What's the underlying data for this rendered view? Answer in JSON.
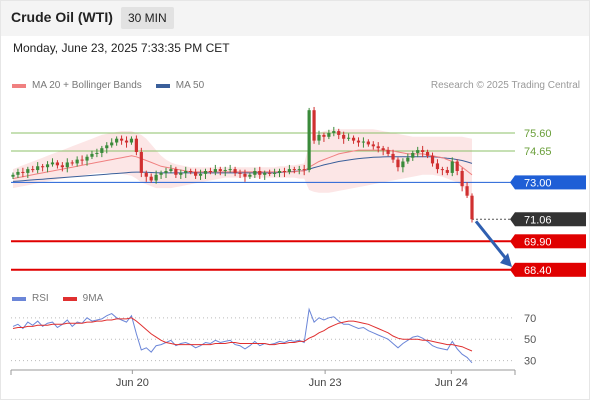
{
  "header": {
    "title": "Crude Oil (WTI)",
    "interval": "30 MIN",
    "timestamp": "Monday, June 23, 2025 7:33:35 PM CET"
  },
  "legend": {
    "ma20_label": "MA 20 + Bollinger Bands",
    "ma50_label": "MA 50",
    "research": "Research © 2025 Trading Central",
    "rsi_label": "RSI",
    "ma9_label": "9MA"
  },
  "colors": {
    "ma20": "#f08080",
    "ma50": "#3a5f9a",
    "bollinger_fill": "#fce2e2",
    "bull": "#3a8a3a",
    "bear": "#d03030",
    "resistance": "#8cc06a",
    "pivot": "#1f5fd6",
    "support": "#e00000",
    "last_price": "#333333",
    "rsi": "#6b86d8",
    "rsi_ma": "#e03030",
    "arrow": "#2f5fb0"
  },
  "chart_data": [
    {
      "type": "candlestick",
      "price_range": [
        67.6,
        77.6
      ],
      "levels": [
        {
          "label": "75.60",
          "value": 75.6,
          "kind": "resistance"
        },
        {
          "label": "74.65",
          "value": 74.65,
          "kind": "resistance"
        },
        {
          "label": "73.00",
          "value": 73.0,
          "kind": "pivot"
        },
        {
          "label": "71.06",
          "value": 71.06,
          "kind": "last"
        },
        {
          "label": "69.90",
          "value": 69.9,
          "kind": "support"
        },
        {
          "label": "68.40",
          "value": 68.4,
          "kind": "support"
        }
      ],
      "x_ticks": [
        "Jun 20",
        "Jun 23",
        "Jun 24"
      ],
      "close": [
        73.4,
        73.55,
        73.5,
        73.7,
        73.65,
        73.85,
        73.8,
        73.95,
        74.05,
        73.9,
        73.8,
        74.05,
        74.0,
        74.2,
        74.15,
        74.35,
        74.5,
        74.55,
        74.8,
        74.95,
        75.1,
        75.3,
        75.2,
        75.1,
        75.3,
        74.6,
        73.5,
        73.3,
        73.1,
        73.4,
        73.5,
        73.6,
        73.7,
        73.4,
        73.5,
        73.6,
        73.55,
        73.35,
        73.45,
        73.6,
        73.55,
        73.7,
        73.6,
        73.65,
        73.7,
        73.5,
        73.45,
        73.3,
        73.4,
        73.6,
        73.4,
        73.5,
        73.45,
        73.5,
        73.6,
        73.55,
        73.7,
        73.65,
        73.7,
        73.65,
        76.8,
        75.2,
        75.5,
        75.4,
        75.6,
        75.7,
        75.5,
        75.3,
        75.35,
        75.2,
        75.1,
        75.15,
        75.0,
        74.9,
        74.8,
        74.7,
        74.5,
        74.2,
        73.8,
        74.1,
        74.3,
        74.55,
        74.7,
        74.6,
        74.4,
        74.0,
        73.7,
        73.65,
        73.5,
        74.1,
        73.6,
        72.8,
        72.3,
        71.06
      ],
      "ma20": [
        73.2,
        73.25,
        73.3,
        73.35,
        73.4,
        73.45,
        73.5,
        73.55,
        73.6,
        73.65,
        73.7,
        73.75,
        73.8,
        73.85,
        73.9,
        73.95,
        74.0,
        74.05,
        74.1,
        74.15,
        74.2,
        74.25,
        74.3,
        74.35,
        74.4,
        74.35,
        74.25,
        74.15,
        74.05,
        73.95,
        73.85,
        73.8,
        73.75,
        73.7,
        73.65,
        73.6,
        73.55,
        73.55,
        73.55,
        73.55,
        73.55,
        73.55,
        73.55,
        73.55,
        73.55,
        73.55,
        73.55,
        73.55,
        73.55,
        73.55,
        73.55,
        73.55,
        73.55,
        73.55,
        73.55,
        73.55,
        73.55,
        73.55,
        73.6,
        73.6,
        73.8,
        73.95,
        74.1,
        74.2,
        74.3,
        74.4,
        74.5,
        74.55,
        74.6,
        74.65,
        74.7,
        74.7,
        74.7,
        74.7,
        74.7,
        74.7,
        74.7,
        74.65,
        74.6,
        74.55,
        74.5,
        74.5,
        74.5,
        74.5,
        74.45,
        74.4,
        74.35,
        74.3,
        74.2,
        74.1,
        74.0,
        73.8,
        73.6,
        73.4
      ],
      "bb_upper": [
        73.7,
        73.8,
        73.9,
        74.0,
        74.1,
        74.2,
        74.3,
        74.4,
        74.5,
        74.6,
        74.7,
        74.8,
        74.9,
        75.0,
        75.1,
        75.2,
        75.3,
        75.4,
        75.5,
        75.55,
        75.6,
        75.65,
        75.7,
        75.7,
        75.7,
        75.6,
        75.5,
        75.3,
        75.0,
        74.7,
        74.4,
        74.2,
        74.05,
        73.95,
        73.9,
        73.85,
        73.8,
        73.8,
        73.8,
        73.8,
        73.8,
        73.8,
        73.8,
        73.8,
        73.8,
        73.8,
        73.8,
        73.8,
        73.8,
        73.8,
        73.8,
        73.8,
        73.8,
        73.8,
        73.85,
        73.85,
        73.9,
        73.9,
        73.95,
        74.0,
        75.0,
        75.4,
        75.6,
        75.7,
        75.75,
        75.8,
        75.8,
        75.8,
        75.8,
        75.8,
        75.8,
        75.8,
        75.8,
        75.8,
        75.75,
        75.7,
        75.65,
        75.6,
        75.55,
        75.5,
        75.45,
        75.4,
        75.4,
        75.4,
        75.4,
        75.4,
        75.4,
        75.4,
        75.4,
        75.4,
        75.4,
        75.4,
        75.35,
        75.3
      ],
      "bb_lower": [
        72.7,
        72.75,
        72.8,
        72.85,
        72.9,
        72.95,
        73.0,
        73.05,
        73.1,
        73.15,
        73.2,
        73.25,
        73.3,
        73.3,
        73.35,
        73.4,
        73.45,
        73.5,
        73.5,
        73.5,
        73.5,
        73.5,
        73.45,
        73.4,
        73.35,
        73.2,
        73.0,
        72.9,
        72.8,
        72.7,
        72.7,
        72.7,
        72.7,
        72.75,
        72.8,
        72.85,
        72.9,
        72.95,
        73.0,
        73.05,
        73.1,
        73.15,
        73.2,
        73.25,
        73.25,
        73.25,
        73.25,
        73.25,
        73.25,
        73.25,
        73.25,
        73.25,
        73.25,
        73.25,
        73.25,
        73.25,
        73.25,
        73.25,
        73.2,
        73.2,
        72.6,
        72.5,
        72.45,
        72.45,
        72.45,
        72.5,
        72.55,
        72.6,
        72.65,
        72.7,
        72.75,
        72.8,
        72.85,
        72.9,
        72.95,
        73.0,
        73.05,
        73.1,
        73.15,
        73.2,
        73.25,
        73.3,
        73.35,
        73.4,
        73.4,
        73.4,
        73.35,
        73.3,
        73.2,
        73.1,
        73.0,
        72.8,
        72.5,
        72.1
      ],
      "ma50": [
        73.05,
        73.07,
        73.09,
        73.11,
        73.13,
        73.15,
        73.17,
        73.19,
        73.21,
        73.23,
        73.25,
        73.27,
        73.29,
        73.31,
        73.33,
        73.35,
        73.37,
        73.39,
        73.41,
        73.43,
        73.45,
        73.47,
        73.49,
        73.51,
        73.53,
        73.54,
        73.54,
        73.53,
        73.52,
        73.51,
        73.5,
        73.5,
        73.5,
        73.5,
        73.5,
        73.5,
        73.5,
        73.5,
        73.5,
        73.5,
        73.5,
        73.5,
        73.5,
        73.5,
        73.5,
        73.5,
        73.5,
        73.5,
        73.5,
        73.5,
        73.5,
        73.5,
        73.5,
        73.5,
        73.52,
        73.54,
        73.56,
        73.58,
        73.6,
        73.62,
        73.7,
        73.78,
        73.85,
        73.92,
        73.98,
        74.04,
        74.1,
        74.14,
        74.18,
        74.22,
        74.25,
        74.28,
        74.3,
        74.32,
        74.33,
        74.34,
        74.35,
        74.35,
        74.35,
        74.35,
        74.35,
        74.35,
        74.35,
        74.35,
        74.35,
        74.35,
        74.33,
        74.3,
        74.27,
        74.24,
        74.2,
        74.15,
        74.08,
        74.0
      ]
    },
    {
      "type": "line",
      "name": "RSI",
      "y_ticks": [
        70,
        50,
        30
      ],
      "ylim": [
        25,
        82
      ],
      "rsi": [
        62,
        64,
        60,
        66,
        63,
        67,
        62,
        65,
        66,
        61,
        64,
        68,
        62,
        66,
        65,
        70,
        67,
        68,
        69,
        72,
        74,
        70,
        68,
        66,
        72,
        55,
        40,
        42,
        38,
        44,
        45,
        47,
        49,
        44,
        46,
        47,
        45,
        42,
        44,
        47,
        46,
        49,
        47,
        48,
        49,
        45,
        44,
        41,
        44,
        48,
        44,
        46,
        45,
        46,
        48,
        47,
        49,
        48,
        49,
        47,
        78,
        66,
        70,
        68,
        70,
        71,
        67,
        64,
        64,
        62,
        60,
        61,
        58,
        56,
        54,
        52,
        50,
        46,
        42,
        46,
        49,
        52,
        53,
        51,
        48,
        44,
        42,
        41,
        40,
        48,
        41,
        36,
        33,
        28
      ],
      "ma9": [
        60,
        61,
        61,
        62,
        62,
        63,
        63,
        63,
        64,
        64,
        64,
        65,
        65,
        65,
        65,
        66,
        66,
        67,
        67,
        68,
        68,
        69,
        69,
        69,
        70,
        67,
        63,
        59,
        55,
        52,
        49,
        47,
        46,
        45,
        45,
        45,
        45,
        45,
        45,
        45,
        45,
        46,
        46,
        46,
        47,
        47,
        46,
        46,
        46,
        46,
        46,
        46,
        45,
        45,
        46,
        46,
        47,
        47,
        48,
        48,
        51,
        53,
        56,
        58,
        61,
        63,
        65,
        66,
        67,
        67,
        66,
        65,
        64,
        62,
        60,
        58,
        56,
        53,
        51,
        50,
        50,
        50,
        50,
        49,
        49,
        48,
        47,
        46,
        45,
        45,
        44,
        43,
        41,
        39
      ]
    }
  ]
}
